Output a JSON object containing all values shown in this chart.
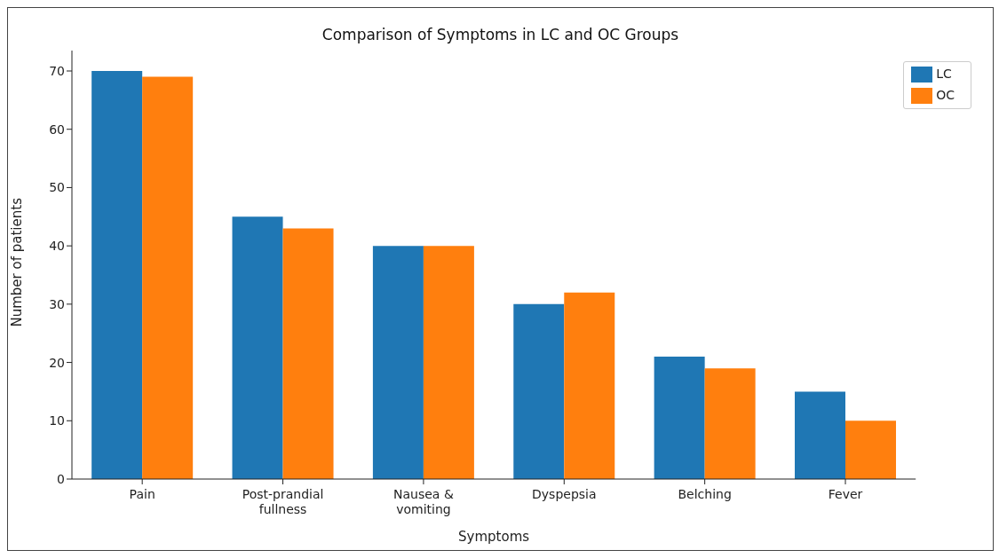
{
  "chart_data": {
    "type": "bar",
    "title": "Comparison of Symptoms in LC and OC Groups",
    "xlabel": "Symptoms",
    "ylabel": "Number of patients",
    "categories": [
      "Pain",
      "Post-prandial fullness",
      "Nausea & vomiting",
      "Dyspepsia",
      "Belching",
      "Fever"
    ],
    "series": [
      {
        "name": "LC",
        "color": "#1f77b4",
        "values": [
          70,
          45,
          40,
          30,
          21,
          15
        ]
      },
      {
        "name": "OC",
        "color": "#ff7f0e",
        "values": [
          69,
          43,
          40,
          32,
          19,
          10
        ]
      }
    ],
    "ylim": [
      0,
      73.5
    ],
    "yticks": [
      0,
      10,
      20,
      30,
      40,
      50,
      60,
      70
    ],
    "grid": false,
    "legend": "top right"
  }
}
